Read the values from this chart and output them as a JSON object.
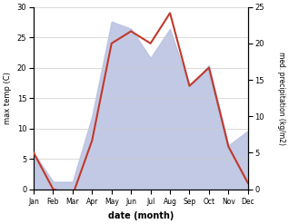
{
  "months": [
    "Jan",
    "Feb",
    "Mar",
    "Apr",
    "May",
    "Jun",
    "Jul",
    "Aug",
    "Sep",
    "Oct",
    "Nov",
    "Dec"
  ],
  "temp_max": [
    6,
    0,
    -1,
    8,
    24,
    26,
    24,
    29,
    17,
    20,
    7,
    1
  ],
  "precipitation": [
    5,
    1,
    1,
    10,
    23,
    22,
    18,
    22,
    14,
    17,
    6,
    8
  ],
  "temp_ylim": [
    0,
    30
  ],
  "precip_ylim": [
    0,
    25
  ],
  "temp_yticks": [
    0,
    5,
    10,
    15,
    20,
    25,
    30
  ],
  "precip_yticks": [
    0,
    5,
    10,
    15,
    20,
    25
  ],
  "temp_color": "#c0392b",
  "precip_fill_color": "#b8c0e0",
  "xlabel": "date (month)",
  "ylabel_left": "max temp (C)",
  "ylabel_right": "med. precipitation (kg/m2)",
  "background_color": "#ffffff",
  "line_width": 1.5,
  "grid_color": "#cccccc"
}
